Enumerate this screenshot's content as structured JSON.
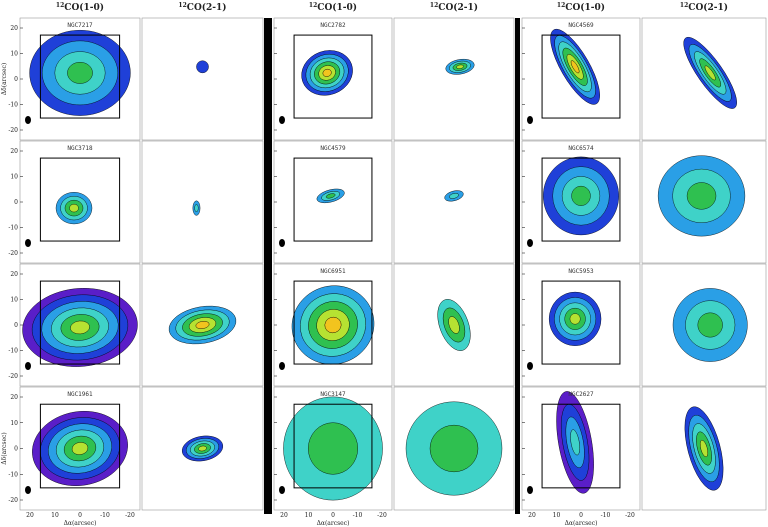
{
  "columns": [
    {
      "sup": "12",
      "text": "CO(1-0)"
    },
    {
      "sup": "12",
      "text": "CO(2-1)"
    },
    {
      "sup": "12",
      "text": "CO(1-0)"
    },
    {
      "sup": "12",
      "text": "CO(2-1)"
    },
    {
      "sup": "12",
      "text": "CO(1-0)"
    },
    {
      "sup": "12",
      "text": "CO(2-1)"
    }
  ],
  "rows": [
    [
      "NGC7217",
      "NGC2782",
      "NGC4569"
    ],
    [
      "NGC3718",
      "NGC4579",
      "NGC6574"
    ],
    [
      "NGC6951",
      "NGC5953"
    ],
    [
      "NGC1961",
      "NGC3147",
      "NGC2627"
    ]
  ],
  "y_ticks": [
    "20",
    "10",
    "0",
    "-10",
    "-20"
  ],
  "x_ticks": [
    "20",
    "10",
    "0",
    "-10",
    "-20"
  ],
  "y_axis_label": "Δδ(arcsec)",
  "x_axis_label": "Δα(arcsec)"
}
